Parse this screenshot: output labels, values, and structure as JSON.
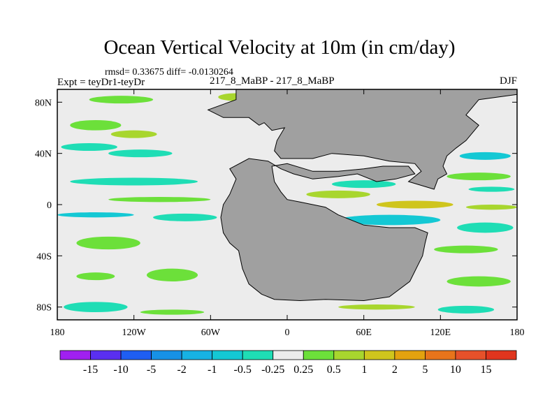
{
  "figure": {
    "title": "Ocean Vertical Velocity at 10m (in cm/day)",
    "stats": "rmsd= 0.33675  diff= -0.0130264",
    "experiment": "Expt = teyDr1-teyDr",
    "run": "217_8_MaBP - 217_8_MaBP",
    "season": "DJF"
  },
  "chart_data": {
    "type": "heatmap",
    "title": "Ocean Vertical Velocity at 10m (in cm/day)",
    "variable": "ocean vertical velocity at 10m",
    "units": "cm/day",
    "season": "DJF",
    "rmsd": 0.33675,
    "diff": -0.0130264,
    "xlim": [
      -180,
      180
    ],
    "ylim": [
      -90,
      90
    ],
    "x_ticks": [
      {
        "value": -180,
        "label": "180"
      },
      {
        "value": -120,
        "label": "120W"
      },
      {
        "value": -60,
        "label": "60W"
      },
      {
        "value": 0,
        "label": "0"
      },
      {
        "value": 60,
        "label": "60E"
      },
      {
        "value": 120,
        "label": "120E"
      },
      {
        "value": 180,
        "label": "180"
      }
    ],
    "y_ticks": [
      {
        "value": 80,
        "label": "80N"
      },
      {
        "value": 40,
        "label": "40N"
      },
      {
        "value": 0,
        "label": "0"
      },
      {
        "value": -40,
        "label": "40S"
      },
      {
        "value": -80,
        "label": "80S"
      }
    ],
    "land_color": "#a0a0a0",
    "colorbar": {
      "labels": [
        "-15",
        "-10",
        "-5",
        "-2",
        "-1",
        "-0.5",
        "-0.25",
        "0.25",
        "0.5",
        "1",
        "2",
        "5",
        "10",
        "15"
      ],
      "colors": [
        "#a020f0",
        "#5a2ff0",
        "#1f5ef2",
        "#1791e6",
        "#17b2e3",
        "#14c8d4",
        "#1fddb5",
        "#ececec",
        "#6ce03a",
        "#a8d62e",
        "#cfc51d",
        "#e3a20f",
        "#e8741b",
        "#e6512a",
        "#e0351e"
      ]
    },
    "continents": [
      {
        "name": "main-continent",
        "outline": [
          [
            -100,
            90
          ],
          [
            -40,
            90
          ],
          [
            -40,
            82
          ],
          [
            -62,
            74
          ],
          [
            -50,
            68
          ],
          [
            -30,
            68
          ],
          [
            -22,
            62
          ],
          [
            -18,
            64
          ],
          [
            -12,
            58
          ],
          [
            -2,
            60
          ],
          [
            -8,
            50
          ],
          [
            -10,
            42
          ],
          [
            -5,
            36
          ],
          [
            20,
            36
          ],
          [
            35,
            40
          ],
          [
            60,
            38
          ],
          [
            80,
            34
          ],
          [
            100,
            32
          ],
          [
            105,
            26
          ],
          [
            95,
            18
          ],
          [
            115,
            12
          ],
          [
            118,
            20
          ],
          [
            125,
            24
          ],
          [
            122,
            30
          ],
          [
            125,
            38
          ],
          [
            132,
            44
          ],
          [
            140,
            50
          ],
          [
            150,
            62
          ],
          [
            140,
            70
          ],
          [
            150,
            82
          ],
          [
            180,
            86
          ],
          [
            180,
            90
          ]
        ]
      },
      {
        "name": "southern-continent",
        "outline": [
          [
            -45,
            28
          ],
          [
            -40,
            20
          ],
          [
            -45,
            8
          ],
          [
            -50,
            0
          ],
          [
            -52,
            -10
          ],
          [
            -50,
            -22
          ],
          [
            -45,
            -30
          ],
          [
            -38,
            -36
          ],
          [
            -35,
            -50
          ],
          [
            -30,
            -62
          ],
          [
            -20,
            -70
          ],
          [
            -10,
            -74
          ],
          [
            10,
            -75
          ],
          [
            30,
            -74
          ],
          [
            60,
            -75
          ],
          [
            80,
            -72
          ],
          [
            96,
            -60
          ],
          [
            106,
            -40
          ],
          [
            108,
            -30
          ],
          [
            110,
            -22
          ],
          [
            100,
            -18
          ],
          [
            80,
            -18
          ],
          [
            60,
            -16
          ],
          [
            40,
            -8
          ],
          [
            30,
            -2
          ],
          [
            20,
            0
          ],
          [
            10,
            2
          ],
          [
            0,
            4
          ],
          [
            -5,
            10
          ],
          [
            -10,
            18
          ],
          [
            -12,
            30
          ],
          [
            0,
            32
          ],
          [
            20,
            26
          ],
          [
            40,
            26
          ],
          [
            60,
            28
          ],
          [
            75,
            30
          ],
          [
            95,
            30
          ],
          [
            100,
            24
          ],
          [
            85,
            20
          ],
          [
            70,
            18
          ],
          [
            55,
            24
          ],
          [
            40,
            22
          ],
          [
            20,
            20
          ],
          [
            5,
            24
          ],
          [
            -5,
            28
          ],
          [
            -15,
            34
          ],
          [
            -30,
            36
          ]
        ]
      }
    ],
    "anomaly_patches": [
      {
        "lon": -130,
        "lat": 82,
        "rx": 25,
        "ry": 3,
        "value": 0.4
      },
      {
        "lon": -40,
        "lat": 84,
        "rx": 14,
        "ry": 3,
        "value": 0.6
      },
      {
        "lon": -150,
        "lat": 62,
        "rx": 20,
        "ry": 4,
        "value": 0.4
      },
      {
        "lon": -120,
        "lat": 55,
        "rx": 18,
        "ry": 3,
        "value": 0.6
      },
      {
        "lon": -155,
        "lat": 45,
        "rx": 22,
        "ry": 3,
        "value": -0.4
      },
      {
        "lon": -115,
        "lat": 40,
        "rx": 25,
        "ry": 3,
        "value": -0.4
      },
      {
        "lon": -120,
        "lat": 18,
        "rx": 50,
        "ry": 3,
        "value": -0.4
      },
      {
        "lon": -100,
        "lat": 4,
        "rx": 40,
        "ry": 2,
        "value": 0.4
      },
      {
        "lon": -150,
        "lat": -8,
        "rx": 30,
        "ry": 2,
        "value": -0.6
      },
      {
        "lon": -80,
        "lat": -10,
        "rx": 25,
        "ry": 3,
        "value": -0.4
      },
      {
        "lon": -140,
        "lat": -30,
        "rx": 25,
        "ry": 5,
        "value": 0.4
      },
      {
        "lon": -90,
        "lat": -55,
        "rx": 20,
        "ry": 5,
        "value": 0.4
      },
      {
        "lon": -150,
        "lat": -56,
        "rx": 15,
        "ry": 3,
        "value": 0.4
      },
      {
        "lon": -150,
        "lat": -80,
        "rx": 25,
        "ry": 4,
        "value": -0.4
      },
      {
        "lon": -90,
        "lat": -84,
        "rx": 25,
        "ry": 2,
        "value": 0.4
      },
      {
        "lon": 40,
        "lat": 8,
        "rx": 25,
        "ry": 3,
        "value": 0.5
      },
      {
        "lon": 80,
        "lat": -12,
        "rx": 40,
        "ry": 4,
        "value": -0.6
      },
      {
        "lon": 100,
        "lat": 0,
        "rx": 30,
        "ry": 3,
        "value": 1.2
      },
      {
        "lon": 160,
        "lat": -2,
        "rx": 20,
        "ry": 2,
        "value": 0.6
      },
      {
        "lon": 155,
        "lat": -18,
        "rx": 22,
        "ry": 4,
        "value": -0.4
      },
      {
        "lon": 140,
        "lat": -35,
        "rx": 25,
        "ry": 3,
        "value": 0.4
      },
      {
        "lon": 150,
        "lat": -60,
        "rx": 25,
        "ry": 4,
        "value": 0.4
      },
      {
        "lon": 140,
        "lat": -82,
        "rx": 22,
        "ry": 3,
        "value": -0.4
      },
      {
        "lon": 155,
        "lat": 38,
        "rx": 20,
        "ry": 3,
        "value": -0.6
      },
      {
        "lon": 150,
        "lat": 22,
        "rx": 25,
        "ry": 3,
        "value": 0.4
      },
      {
        "lon": 160,
        "lat": 12,
        "rx": 18,
        "ry": 2,
        "value": -0.4
      },
      {
        "lon": 60,
        "lat": 16,
        "rx": 25,
        "ry": 3,
        "value": -0.5
      },
      {
        "lon": 70,
        "lat": -80,
        "rx": 30,
        "ry": 2,
        "value": 0.6
      }
    ]
  }
}
